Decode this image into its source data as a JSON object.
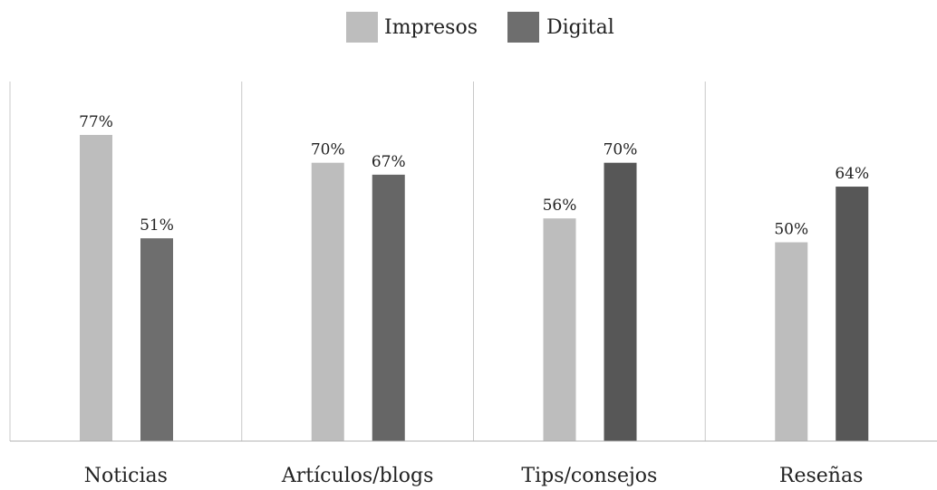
{
  "chart_data": {
    "type": "bar",
    "title": "",
    "xlabel": "",
    "ylabel": "",
    "ylim": [
      0,
      100
    ],
    "grid": false,
    "legend_position": "top-center",
    "categories": [
      "Noticias",
      "Artículos/blogs",
      "Tips/consejos",
      "Reseñas"
    ],
    "series": [
      {
        "name": "Impresos",
        "values": [
          77,
          70,
          56,
          50
        ],
        "labels": [
          "77%",
          "70%",
          "56%",
          "50%"
        ],
        "color": "#bdbdbd"
      },
      {
        "name": "Digital",
        "values": [
          51,
          67,
          70,
          64
        ],
        "labels": [
          "51%",
          "67%",
          "70%",
          "64%"
        ],
        "colors": [
          "#6e6e6e",
          "#666666",
          "#575757",
          "#575757"
        ],
        "legend_color": "#6e6e6e"
      }
    ]
  }
}
